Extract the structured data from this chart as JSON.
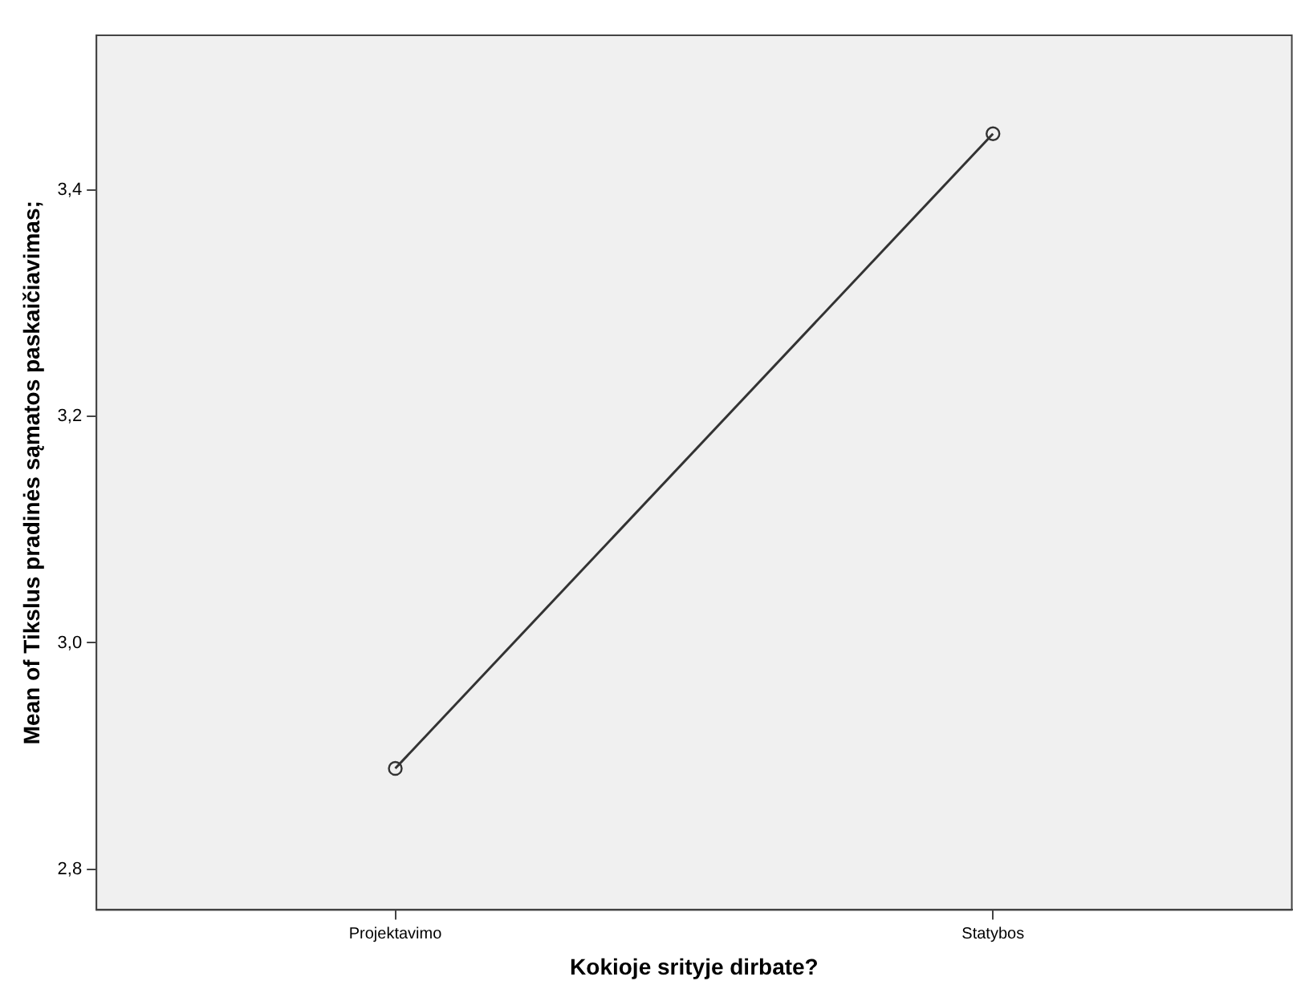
{
  "chart_data": {
    "type": "line",
    "xlabel": "Kokioje srityje dirbate?",
    "ylabel": "Mean of Tikslus pradinės sąmatos paskaičiavimas;",
    "categories": [
      "Projektavimo",
      "Statybos"
    ],
    "series": [
      {
        "color": "#333333",
        "values": [
          2.889,
          3.45
        ]
      }
    ],
    "ylim": [
      2.764,
      3.537
    ],
    "yticks": [
      {
        "value": 2.8,
        "label": "2,8"
      },
      {
        "value": 3.0,
        "label": "3,0"
      },
      {
        "value": 3.2,
        "label": "3,2"
      },
      {
        "value": 3.4,
        "label": "3,4"
      }
    ],
    "marker": "circle",
    "line_style": "solid",
    "grid": false,
    "legend": false
  }
}
